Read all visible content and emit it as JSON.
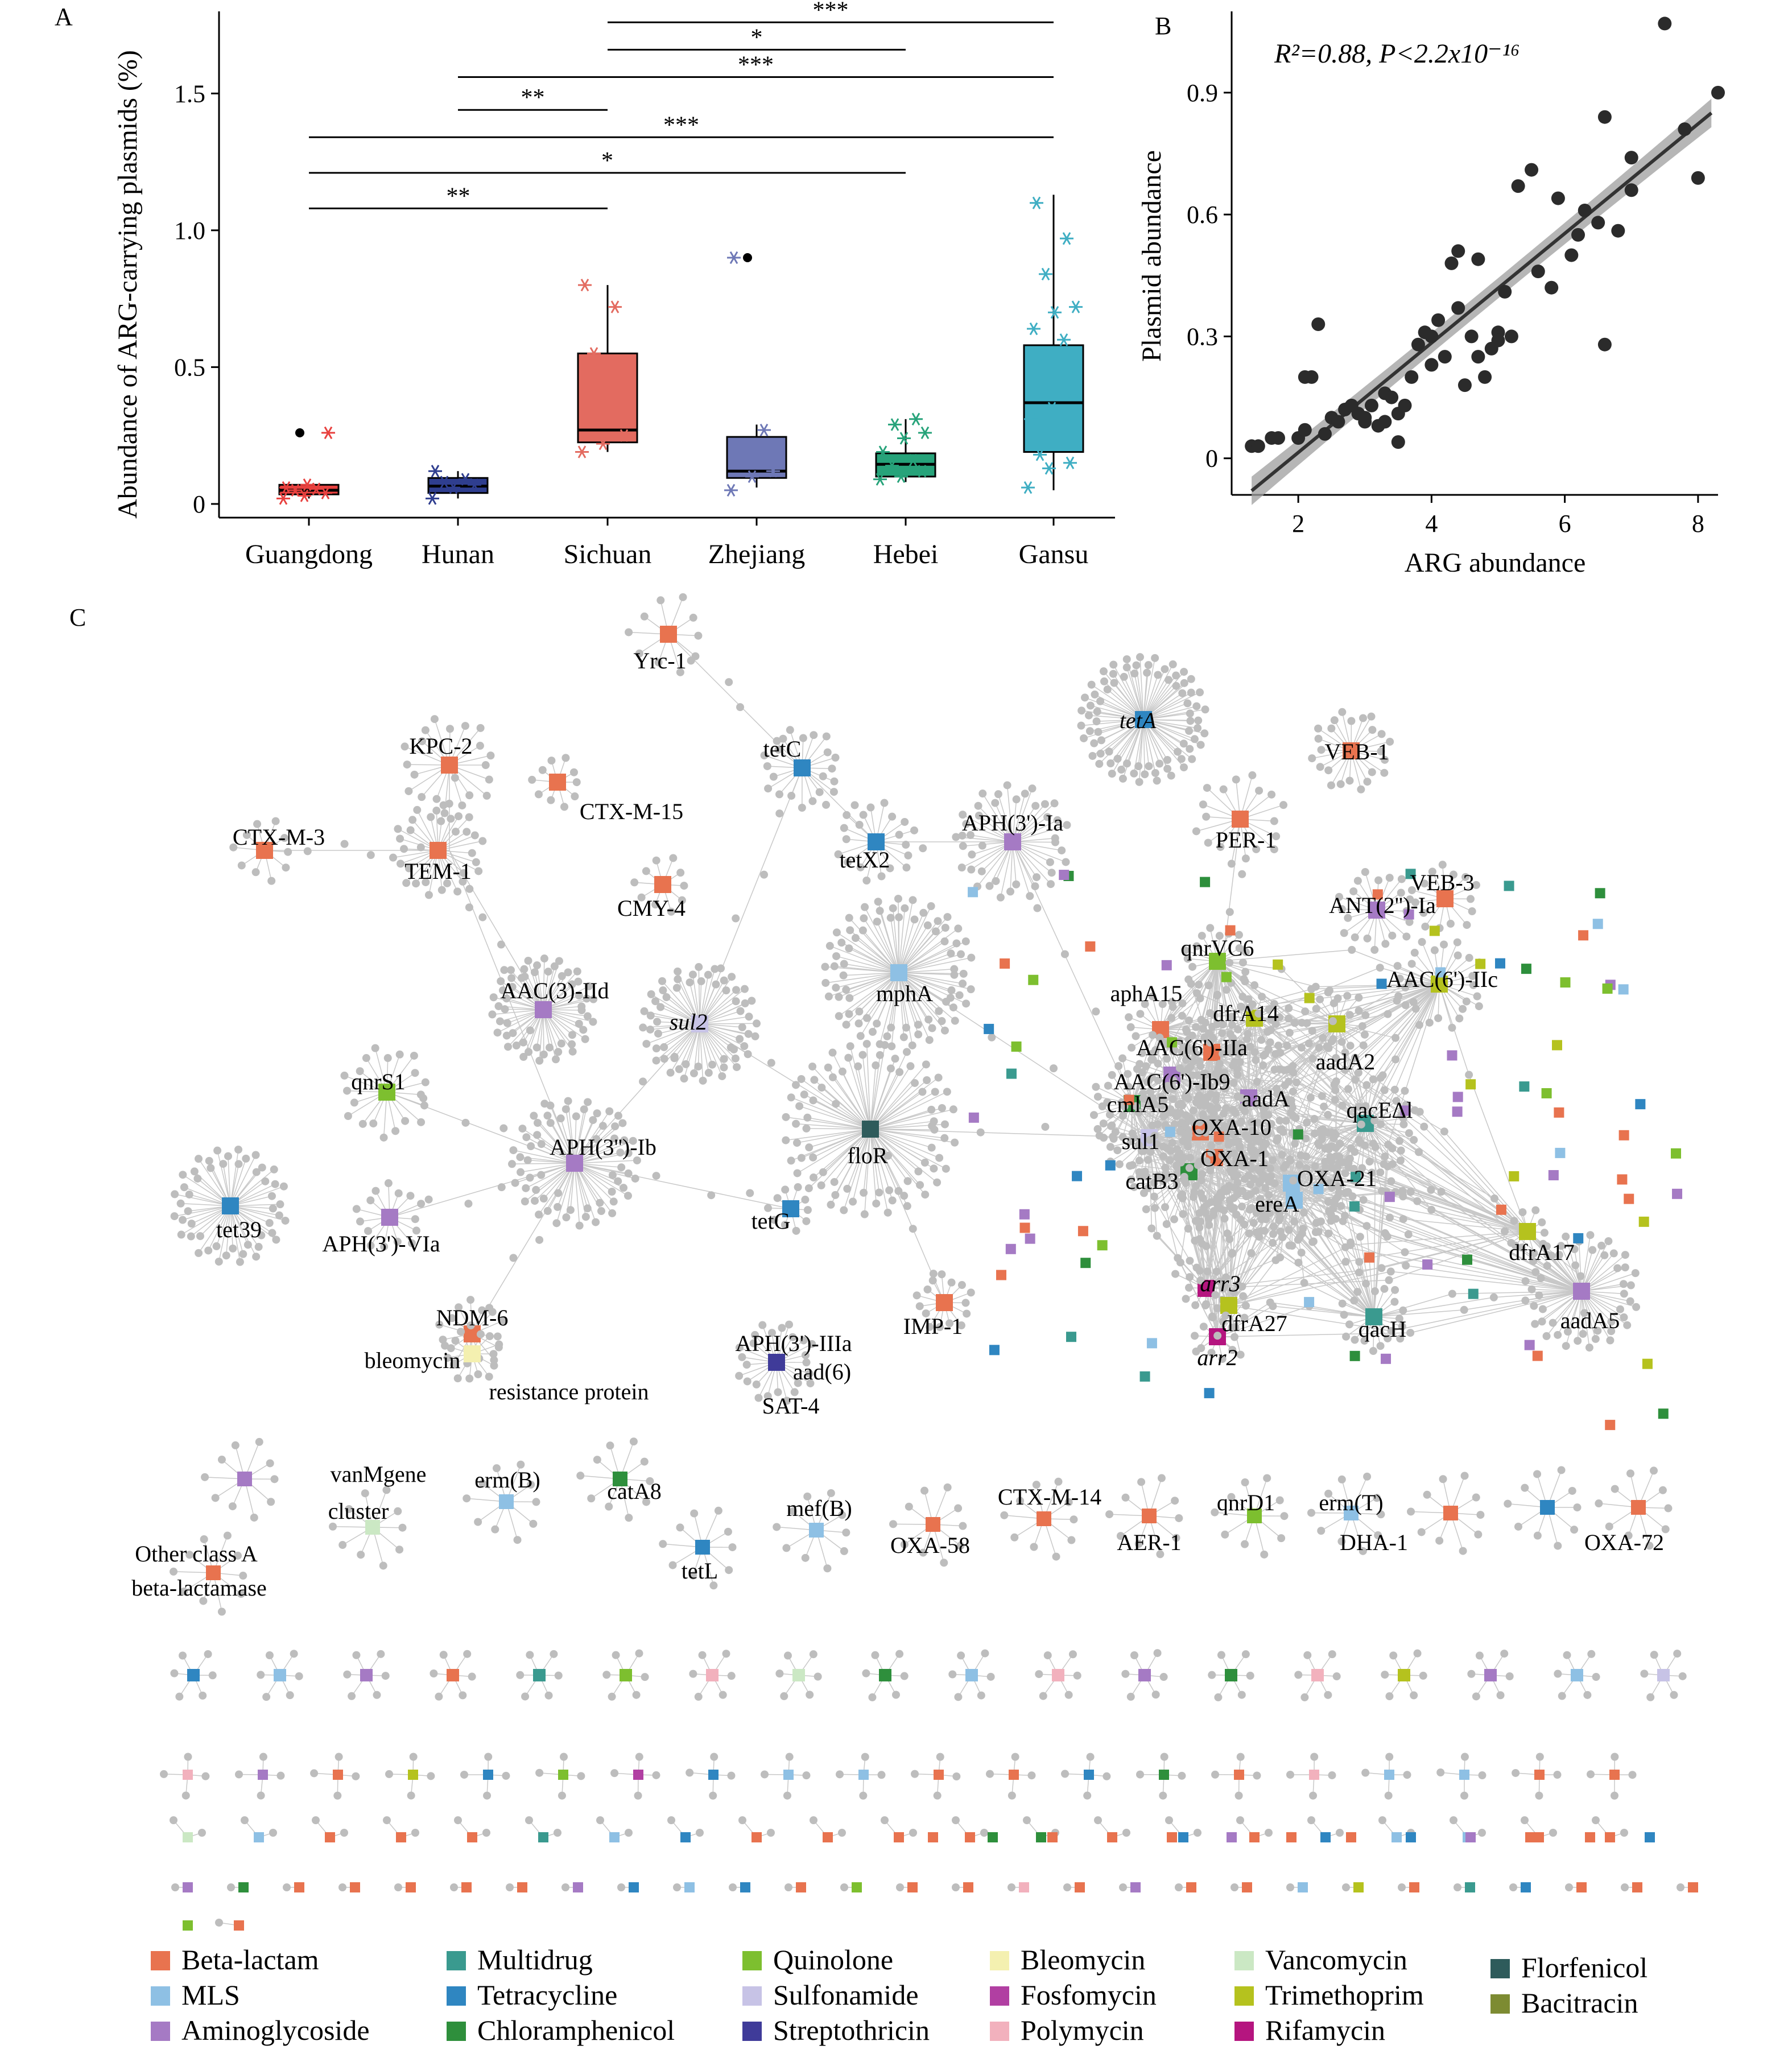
{
  "panel_labels": {
    "a": "A",
    "b": "B",
    "c": "C"
  },
  "chart_data": [
    {
      "id": "A",
      "type": "box",
      "ylabel": "Abundance of ARG-carrying plasmids (%)",
      "xlabel": "",
      "ylim": [
        -0.05,
        1.8
      ],
      "yticks": [
        {
          "v": 0,
          "t": "0"
        },
        {
          "v": 0.5,
          "t": "0.5"
        },
        {
          "v": 1.0,
          "t": "1.0"
        },
        {
          "v": 1.5,
          "t": "1.5"
        }
      ],
      "categories": [
        "Guangdong",
        "Hunan",
        "Sichuan",
        "Zhejiang",
        "Hebei",
        "Gansu"
      ],
      "colors": [
        "#e8413f",
        "#2f3e8f",
        "#e36b60",
        "#6e78b6",
        "#27a37a",
        "#3faec3"
      ],
      "boxes": [
        {
          "q1": 0.035,
          "median": 0.05,
          "q3": 0.07,
          "whisker_low": 0.02,
          "whisker_high": 0.07,
          "outliers": [
            0.26
          ]
        },
        {
          "q1": 0.04,
          "median": 0.065,
          "q3": 0.095,
          "whisker_low": 0.02,
          "whisker_high": 0.12,
          "outliers": []
        },
        {
          "q1": 0.225,
          "median": 0.27,
          "q3": 0.55,
          "whisker_low": 0.19,
          "whisker_high": 0.8,
          "outliers": []
        },
        {
          "q1": 0.095,
          "median": 0.12,
          "q3": 0.245,
          "whisker_low": 0.06,
          "whisker_high": 0.29,
          "outliers": [
            0.9
          ]
        },
        {
          "q1": 0.1,
          "median": 0.145,
          "q3": 0.185,
          "whisker_low": 0.08,
          "whisker_high": 0.31,
          "outliers": []
        },
        {
          "q1": 0.19,
          "median": 0.37,
          "q3": 0.58,
          "whisker_low": 0.05,
          "whisker_high": 1.13,
          "outliers": []
        }
      ],
      "points": [
        [
          0.02,
          0.03,
          0.04,
          0.05,
          0.055,
          0.06,
          0.07,
          0.26
        ],
        [
          0.02,
          0.06,
          0.07,
          0.08,
          0.09,
          0.12
        ],
        [
          0.19,
          0.22,
          0.25,
          0.55,
          0.72,
          0.8
        ],
        [
          0.05,
          0.1,
          0.12,
          0.16,
          0.27,
          0.9
        ],
        [
          0.09,
          0.1,
          0.12,
          0.14,
          0.16,
          0.19,
          0.24,
          0.26,
          0.29,
          0.31
        ],
        [
          0.06,
          0.13,
          0.15,
          0.18,
          0.27,
          0.31,
          0.35,
          0.41,
          0.54,
          0.6,
          0.64,
          0.7,
          0.72,
          0.84,
          0.97,
          1.1
        ]
      ],
      "significance": [
        {
          "from": 2,
          "to": 5,
          "y": 1.76,
          "label": "***"
        },
        {
          "from": 2,
          "to": 4,
          "y": 1.66,
          "label": "*"
        },
        {
          "from": 1,
          "to": 5,
          "y": 1.56,
          "label": "***"
        },
        {
          "from": 1,
          "to": 2,
          "y": 1.44,
          "label": "**"
        },
        {
          "from": 0,
          "to": 5,
          "y": 1.34,
          "label": "***"
        },
        {
          "from": 0,
          "to": 4,
          "y": 1.21,
          "label": "*"
        },
        {
          "from": 0,
          "to": 2,
          "y": 1.08,
          "label": "**"
        }
      ]
    },
    {
      "id": "B",
      "type": "scatter",
      "annotation": "R²=0.88, P<2.2x10⁻¹⁶",
      "xlabel": "ARG abundance",
      "ylabel": "Plasmid abundance",
      "xlim": [
        1.0,
        8.3
      ],
      "ylim": [
        -0.09,
        1.1
      ],
      "xticks": [
        {
          "v": 2,
          "t": "2"
        },
        {
          "v": 4,
          "t": "4"
        },
        {
          "v": 6,
          "t": "6"
        },
        {
          "v": 8,
          "t": "8"
        }
      ],
      "yticks": [
        {
          "v": 0,
          "t": "0"
        },
        {
          "v": 0.3,
          "t": "0.3"
        },
        {
          "v": 0.6,
          "t": "0.6"
        },
        {
          "v": 0.9,
          "t": "0.9"
        }
      ],
      "fit": {
        "x": [
          1.3,
          8.2
        ],
        "y": [
          -0.08,
          0.85
        ]
      },
      "ci": [
        0.035,
        0.025,
        0.04
      ],
      "points": [
        [
          1.3,
          0.03
        ],
        [
          1.4,
          0.03
        ],
        [
          1.6,
          0.05
        ],
        [
          1.7,
          0.05
        ],
        [
          2.0,
          0.05
        ],
        [
          2.1,
          0.07
        ],
        [
          2.1,
          0.2
        ],
        [
          2.2,
          0.2
        ],
        [
          2.3,
          0.33
        ],
        [
          2.4,
          0.06
        ],
        [
          2.5,
          0.1
        ],
        [
          2.6,
          0.09
        ],
        [
          2.7,
          0.12
        ],
        [
          2.8,
          0.13
        ],
        [
          2.9,
          0.11
        ],
        [
          3.0,
          0.09
        ],
        [
          3.0,
          0.1
        ],
        [
          3.1,
          0.13
        ],
        [
          3.2,
          0.08
        ],
        [
          3.3,
          0.16
        ],
        [
          3.3,
          0.09
        ],
        [
          3.4,
          0.15
        ],
        [
          3.5,
          0.04
        ],
        [
          3.5,
          0.11
        ],
        [
          3.6,
          0.13
        ],
        [
          3.7,
          0.2
        ],
        [
          3.8,
          0.28
        ],
        [
          3.9,
          0.31
        ],
        [
          4.0,
          0.3
        ],
        [
          4.0,
          0.23
        ],
        [
          4.1,
          0.34
        ],
        [
          4.2,
          0.25
        ],
        [
          4.3,
          0.48
        ],
        [
          4.4,
          0.51
        ],
        [
          4.4,
          0.37
        ],
        [
          4.5,
          0.18
        ],
        [
          4.6,
          0.3
        ],
        [
          4.7,
          0.25
        ],
        [
          4.7,
          0.49
        ],
        [
          4.8,
          0.2
        ],
        [
          4.9,
          0.27
        ],
        [
          5.0,
          0.31
        ],
        [
          5.0,
          0.29
        ],
        [
          5.1,
          0.41
        ],
        [
          5.2,
          0.3
        ],
        [
          5.3,
          0.67
        ],
        [
          5.5,
          0.71
        ],
        [
          5.6,
          0.46
        ],
        [
          5.8,
          0.42
        ],
        [
          5.9,
          0.64
        ],
        [
          6.1,
          0.5
        ],
        [
          6.2,
          0.55
        ],
        [
          6.3,
          0.61
        ],
        [
          6.5,
          0.58
        ],
        [
          6.6,
          0.28
        ],
        [
          6.6,
          0.84
        ],
        [
          6.8,
          0.56
        ],
        [
          7.0,
          0.74
        ],
        [
          7.0,
          0.66
        ],
        [
          7.5,
          1.07
        ],
        [
          7.8,
          0.81
        ],
        [
          8.0,
          0.69
        ],
        [
          8.3,
          0.9
        ]
      ]
    },
    {
      "id": "C",
      "type": "network",
      "labels": [
        {
          "t": "Yrc-1"
        },
        {
          "t": "tetA"
        },
        {
          "t": "KPC-2"
        },
        {
          "t": "tetC"
        },
        {
          "t": "VEB-1"
        },
        {
          "t": "CTX-M-15"
        },
        {
          "t": "CTX-M-3"
        },
        {
          "t": "TEM-1"
        },
        {
          "t": "tetX2"
        },
        {
          "t": "APH(3')-Ia"
        },
        {
          "t": "PER-1"
        },
        {
          "t": "CMY-4"
        },
        {
          "t": "VEB-3"
        },
        {
          "t": "ANT(2'')-Ia"
        },
        {
          "t": "qnrVC6"
        },
        {
          "t": "AAC(6')-IIc"
        },
        {
          "t": "AAC(3)-IId"
        },
        {
          "t": "mphA"
        },
        {
          "t": "aphA15"
        },
        {
          "t": "sul2"
        },
        {
          "t": "dfrA14"
        },
        {
          "t": "AAC(6')-IIa"
        },
        {
          "t": "aadA2"
        },
        {
          "t": "AAC(6')-Ib9"
        },
        {
          "t": "qnrS1"
        },
        {
          "t": "cmlA5"
        },
        {
          "t": "aadA"
        },
        {
          "t": "qacEΔl"
        },
        {
          "t": "OXA-10"
        },
        {
          "t": "APH(3'')-Ib"
        },
        {
          "t": "sul1"
        },
        {
          "t": "floR"
        },
        {
          "t": "OXA-1"
        },
        {
          "t": "catB3"
        },
        {
          "t": "OXA-21"
        },
        {
          "t": "tet39"
        },
        {
          "t": "tetG"
        },
        {
          "t": "APH(3')-VIa"
        },
        {
          "t": "ereA"
        },
        {
          "t": "dfrA17"
        },
        {
          "t": "arr3"
        },
        {
          "t": "NDM-6"
        },
        {
          "t": "IMP-1"
        },
        {
          "t": "dfrA27"
        },
        {
          "t": "aadA5"
        },
        {
          "t": "qacH"
        },
        {
          "t": "APH(3')-IIIa"
        },
        {
          "t": "bleomycin"
        },
        {
          "t": "arr2"
        },
        {
          "t": "aad(6)"
        },
        {
          "t": "resistance protein"
        },
        {
          "t": "SAT-4"
        },
        {
          "t": "vanMgene"
        },
        {
          "t": "erm(B)"
        },
        {
          "t": "catA8"
        },
        {
          "t": "mef(B)"
        },
        {
          "t": "CTX-M-14"
        },
        {
          "t": "qnrD1"
        },
        {
          "t": "erm(T)"
        },
        {
          "t": "cluster"
        },
        {
          "t": "Other class A"
        },
        {
          "t": "OXA-58"
        },
        {
          "t": "AER-1"
        },
        {
          "t": "DHA-1"
        },
        {
          "t": "OXA-72"
        },
        {
          "t": "tetL"
        },
        {
          "t": "beta-lactamase"
        }
      ],
      "legend": [
        {
          "name": "Beta-lactam",
          "color": "#e8734f"
        },
        {
          "name": "Multidrug",
          "color": "#3a9a8f"
        },
        {
          "name": "Quinolone",
          "color": "#7dbf2f"
        },
        {
          "name": "Bleomycin",
          "color": "#f4f0b0"
        },
        {
          "name": "Vancomycin",
          "color": "#cbe8c4"
        },
        {
          "name": "Florfenicol",
          "color": "#2e5b5b"
        },
        {
          "name": "MLS",
          "color": "#8ec0e4"
        },
        {
          "name": "Tetracycline",
          "color": "#2f86c1"
        },
        {
          "name": "Sulfonamide",
          "color": "#c7c3e6"
        },
        {
          "name": "Fosfomycin",
          "color": "#b13fa2"
        },
        {
          "name": "Trimethoprim",
          "color": "#b5c21e"
        },
        {
          "name": "Bacitracin",
          "color": "#7d8b32"
        },
        {
          "name": "Aminoglycoside",
          "color": "#a57ac4"
        },
        {
          "name": "Chloramphenicol",
          "color": "#2e8f3c"
        },
        {
          "name": "Streptothricin",
          "color": "#3f3b99"
        },
        {
          "name": "Polymycin",
          "color": "#f2b1bd"
        },
        {
          "name": "Rifamycin",
          "color": "#b5157f"
        }
      ],
      "colors": {
        "node": "#bdbdbd",
        "edge": "#c8c8c8"
      }
    }
  ]
}
